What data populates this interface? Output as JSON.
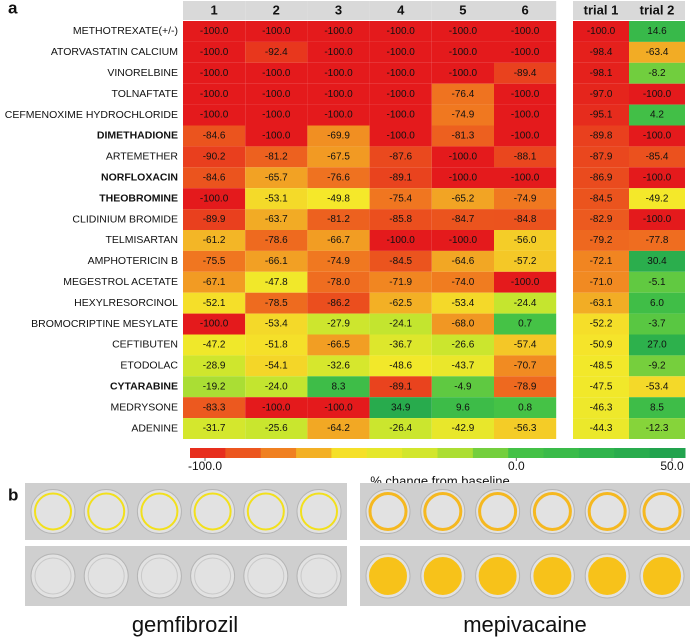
{
  "panel_labels": [
    "a",
    "b"
  ],
  "chart_data": {
    "type": "heatmap",
    "columns": [
      "1",
      "2",
      "3",
      "4",
      "5",
      "6",
      "trial 1",
      "trial 2"
    ],
    "clim": [
      -100,
      50
    ],
    "colors": [
      "#e41a1c",
      "#f07820",
      "#f5e82a",
      "#c8e62e",
      "#46c246",
      "#2eb34c",
      "#1f9e4f"
    ],
    "colorbar_ticks": [
      {
        "value": -100,
        "label": "-100.0"
      },
      {
        "value": 0,
        "label": "0.0"
      },
      {
        "value": 50,
        "label": "50.0"
      }
    ],
    "colorbar_label": "% change from baseline",
    "series": [
      {
        "name": "METHOTREXATE(+/-)",
        "bold": false,
        "values": [
          -100,
          -100,
          -100,
          -100,
          -100,
          -100,
          -100,
          14.6
        ],
        "value_labels": [
          "-100.0",
          "-100.0",
          "-100.0",
          "-100.0",
          "-100.0",
          "-100.0",
          "-100.0",
          "14.6"
        ]
      },
      {
        "name": "ATORVASTATIN CALCIUM",
        "bold": false,
        "values": [
          -100,
          -92.4,
          -100,
          -100,
          -100,
          -100,
          -98.4,
          -63.4
        ],
        "value_labels": [
          "-100.0",
          "-92.4",
          "-100.0",
          "-100.0",
          "-100.0",
          "-100.0",
          "-98.4",
          "-63.4"
        ]
      },
      {
        "name": "VINORELBINE",
        "bold": false,
        "values": [
          -100,
          -100,
          -100,
          -100,
          -100,
          -89.4,
          -98.1,
          -8.2
        ],
        "value_labels": [
          "-100.0",
          "-100.0",
          "-100.0",
          "-100.0",
          "-100.0",
          "-89.4",
          "-98.1",
          "-8.2"
        ]
      },
      {
        "name": "TOLNAFTATE",
        "bold": false,
        "values": [
          -100,
          -100,
          -100,
          -100,
          -76.4,
          -100,
          -97.0,
          -100
        ],
        "value_labels": [
          "-100.0",
          "-100.0",
          "-100.0",
          "-100.0",
          "-76.4",
          "-100.0",
          "-97.0",
          "-100.0"
        ]
      },
      {
        "name": "CEFMENOXIME HYDROCHLORIDE",
        "bold": false,
        "values": [
          -100,
          -100,
          -100,
          -100,
          -74.9,
          -100,
          -95.1,
          4.2
        ],
        "value_labels": [
          "-100.0",
          "-100.0",
          "-100.0",
          "-100.0",
          "-74.9",
          "-100.0",
          "-95.1",
          "4.2"
        ]
      },
      {
        "name": "DIMETHADIONE",
        "bold": true,
        "values": [
          -84.6,
          -100,
          -69.9,
          -100,
          -81.3,
          -100,
          -89.8,
          -100
        ],
        "value_labels": [
          "-84.6",
          "-100.0",
          "-69.9",
          "-100.0",
          "-81.3",
          "-100.0",
          "-89.8",
          "-100.0"
        ]
      },
      {
        "name": "ARTEMETHER",
        "bold": false,
        "values": [
          -90.2,
          -81.2,
          -67.5,
          -87.6,
          -100,
          -88.1,
          -87.9,
          -85.4
        ],
        "value_labels": [
          "-90.2",
          "-81.2",
          "-67.5",
          "-87.6",
          "-100.0",
          "-88.1",
          "-87.9",
          "-85.4"
        ]
      },
      {
        "name": "NORFLOXACIN",
        "bold": true,
        "values": [
          -84.6,
          -65.7,
          -76.6,
          -89.1,
          -100,
          -100,
          -86.9,
          -100
        ],
        "value_labels": [
          "-84.6",
          "-65.7",
          "-76.6",
          "-89.1",
          "-100.0",
          "-100.0",
          "-86.9",
          "-100.0"
        ]
      },
      {
        "name": "THEOBROMINE",
        "bold": true,
        "values": [
          -100,
          -53.1,
          -49.8,
          -75.4,
          -65.2,
          -74.9,
          -84.5,
          -49.2
        ],
        "value_labels": [
          "-100.0",
          "-53.1",
          "-49.8",
          "-75.4",
          "-65.2",
          "-74.9",
          "-84.5",
          "-49.2"
        ]
      },
      {
        "name": "CLIDINIUM BROMIDE",
        "bold": false,
        "values": [
          -89.9,
          -63.7,
          -81.2,
          -85.8,
          -84.7,
          -84.8,
          -82.9,
          -100
        ],
        "value_labels": [
          "-89.9",
          "-63.7",
          "-81.2",
          "-85.8",
          "-84.7",
          "-84.8",
          "-82.9",
          "-100.0"
        ]
      },
      {
        "name": "TELMISARTAN",
        "bold": false,
        "values": [
          -61.2,
          -78.6,
          -66.7,
          -100,
          -100,
          -56.0,
          -79.2,
          -77.8
        ],
        "value_labels": [
          "-61.2",
          "-78.6",
          "-66.7",
          "-100.0",
          "-100.0",
          "-56.0",
          "-79.2",
          "-77.8"
        ]
      },
      {
        "name": "AMPHOTERICIN B",
        "bold": false,
        "values": [
          -75.5,
          -66.1,
          -74.9,
          -84.5,
          -64.6,
          -57.2,
          -72.1,
          30.4
        ],
        "value_labels": [
          "-75.5",
          "-66.1",
          "-74.9",
          "-84.5",
          "-64.6",
          "-57.2",
          "-72.1",
          "30.4"
        ]
      },
      {
        "name": "MEGESTROL ACETATE",
        "bold": false,
        "values": [
          -67.1,
          -47.8,
          -78.0,
          -71.9,
          -74.0,
          -100,
          -71.0,
          -5.1
        ],
        "value_labels": [
          "-67.1",
          "-47.8",
          "-78.0",
          "-71.9",
          "-74.0",
          "-100.0",
          "-71.0",
          "-5.1"
        ]
      },
      {
        "name": "HEXYLRESORCINOL",
        "bold": false,
        "values": [
          -52.1,
          -78.5,
          -86.2,
          -62.5,
          -53.4,
          -24.4,
          -63.1,
          6.0
        ],
        "value_labels": [
          "-52.1",
          "-78.5",
          "-86.2",
          "-62.5",
          "-53.4",
          "-24.4",
          "-63.1",
          "6.0"
        ]
      },
      {
        "name": "BROMOCRIPTINE MESYLATE",
        "bold": false,
        "values": [
          -100,
          -53.4,
          -27.9,
          -24.1,
          -68.0,
          0.7,
          -52.2,
          -3.7
        ],
        "value_labels": [
          "-100.0",
          "-53.4",
          "-27.9",
          "-24.1",
          "-68.0",
          "0.7",
          "-52.2",
          "-3.7"
        ]
      },
      {
        "name": "CEFTIBUTEN",
        "bold": false,
        "values": [
          -47.2,
          -51.8,
          -66.5,
          -36.7,
          -26.6,
          -57.4,
          -50.9,
          27.0
        ],
        "value_labels": [
          "-47.2",
          "-51.8",
          "-66.5",
          "-36.7",
          "-26.6",
          "-57.4",
          "-50.9",
          "27.0"
        ]
      },
      {
        "name": "ETODOLAC",
        "bold": false,
        "values": [
          -28.9,
          -54.1,
          -32.6,
          -48.6,
          -43.7,
          -70.7,
          -48.5,
          -9.2
        ],
        "value_labels": [
          "-28.9",
          "-54.1",
          "-32.6",
          "-48.6",
          "-43.7",
          "-70.7",
          "-48.5",
          "-9.2"
        ]
      },
      {
        "name": "CYTARABINE",
        "bold": true,
        "values": [
          -19.2,
          -24.0,
          8.3,
          -89.1,
          -4.9,
          -78.9,
          -47.5,
          -53.4
        ],
        "value_labels": [
          "-19.2",
          "-24.0",
          "8.3",
          "-89.1",
          "-4.9",
          "-78.9",
          "-47.5",
          "-53.4"
        ]
      },
      {
        "name": "MEDRYSONE",
        "bold": false,
        "values": [
          -83.3,
          -100,
          -100,
          34.9,
          9.6,
          0.8,
          -46.3,
          8.5
        ],
        "value_labels": [
          "-83.3",
          "-100.0",
          "-100.0",
          "34.9",
          "9.6",
          "0.8",
          "-46.3",
          "8.5"
        ]
      },
      {
        "name": "ADENINE",
        "bold": false,
        "values": [
          -31.7,
          -25.6,
          -64.2,
          -26.4,
          -42.9,
          -56.3,
          -44.3,
          -12.3
        ],
        "value_labels": [
          "-31.7",
          "-25.6",
          "-64.2",
          "-26.4",
          "-42.9",
          "-56.3",
          "-44.3",
          "-12.3"
        ]
      }
    ]
  },
  "images": {
    "left_label": "gemfibrozil",
    "right_label": "mepivacaine"
  }
}
